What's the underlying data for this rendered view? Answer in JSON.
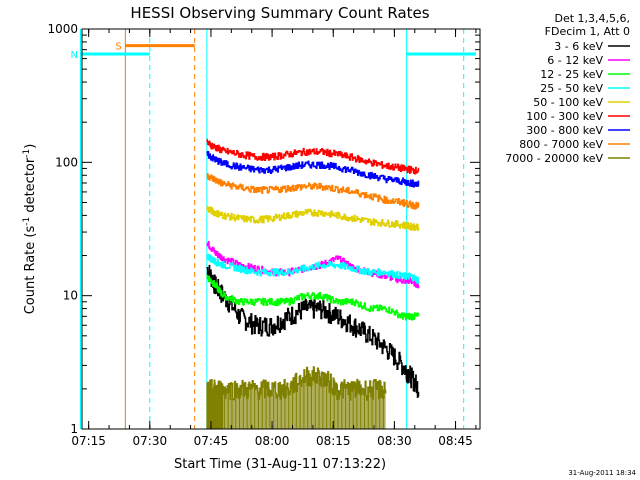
{
  "chart_data": {
    "type": "line",
    "title": "HESSI Observing Summary Count Rates",
    "xlabel": "Start Time (31-Aug-11 07:13:22)",
    "ylabel_main": "Count Rate (s",
    "ylabel_sup1": "-1",
    "ylabel_mid": " detector",
    "ylabel_sup2": "-1",
    "ylabel_end": ")",
    "yscale": "log",
    "ylim": [
      1,
      1000
    ],
    "xlim": [
      "07:13:22",
      "08:51:00"
    ],
    "x_ticks": [
      "07:15",
      "07:30",
      "07:45",
      "08:00",
      "08:15",
      "08:30",
      "08:45"
    ],
    "y_ticks": [
      "1",
      "10",
      "100",
      "1000"
    ],
    "legend_header": [
      "Det 1,3,4,5,6,",
      "FDecim 1, Att 0"
    ],
    "legend_placement": "right",
    "timestamp": "31-Aug-2011 18:34",
    "x": [
      "07:44",
      "07:46",
      "07:48",
      "07:52",
      "07:56",
      "08:00",
      "08:04",
      "08:08",
      "08:12",
      "08:16",
      "08:20",
      "08:24",
      "08:28",
      "08:32",
      "08:34",
      "08:36"
    ],
    "series": [
      {
        "name": "3 - 6 keV",
        "color": "#000000",
        "values": [
          16,
          12,
          10,
          7,
          6,
          6,
          7,
          8,
          8,
          7,
          6,
          5,
          4,
          3,
          2.5,
          2
        ]
      },
      {
        "name": "6 - 12 keV",
        "color": "#ff00ff",
        "values": [
          25,
          21,
          19,
          17,
          16,
          15,
          15,
          16,
          17,
          19,
          16,
          15,
          14,
          13,
          13,
          12
        ]
      },
      {
        "name": "12 - 25 keV",
        "color": "#00ff00",
        "values": [
          14,
          12,
          10,
          9,
          9,
          9,
          9,
          10,
          10,
          9,
          9,
          8,
          8,
          7,
          7,
          7
        ]
      },
      {
        "name": "25 - 50 keV",
        "color": "#00ffff",
        "values": [
          20,
          18,
          17,
          16,
          15,
          15,
          15,
          16,
          17,
          17,
          16,
          15,
          15,
          14,
          14,
          13
        ]
      },
      {
        "name": "50 - 100 keV",
        "color": "#e0d000",
        "values": [
          45,
          42,
          40,
          38,
          37,
          38,
          40,
          42,
          42,
          40,
          38,
          36,
          35,
          34,
          33,
          33
        ]
      },
      {
        "name": "100 - 300 keV",
        "color": "#ff0000",
        "values": [
          140,
          130,
          122,
          115,
          110,
          110,
          115,
          120,
          120,
          115,
          108,
          100,
          94,
          90,
          88,
          86
        ]
      },
      {
        "name": "300 - 800 keV",
        "color": "#0000ff",
        "values": [
          115,
          105,
          98,
          92,
          88,
          88,
          92,
          96,
          96,
          92,
          86,
          80,
          75,
          72,
          70,
          68
        ]
      },
      {
        "name": "800 - 7000 keV",
        "color": "#ff8000",
        "values": [
          80,
          74,
          69,
          65,
          62,
          62,
          64,
          66,
          66,
          63,
          60,
          56,
          52,
          50,
          48,
          47
        ]
      },
      {
        "name": "7000 - 20000 keV",
        "color": "#808000",
        "values": [
          2,
          2,
          2,
          2,
          2,
          2,
          2,
          2.5,
          2.5,
          2,
          2,
          2,
          2,
          null,
          null,
          null
        ]
      }
    ],
    "flags": [
      {
        "label": "S",
        "color": "#ff8000",
        "value": 750,
        "start": "07:24",
        "end": "07:41"
      },
      {
        "label": "N",
        "color": "#00ffff",
        "value": 650,
        "start": "07:13",
        "end": "07:30"
      }
    ]
  }
}
